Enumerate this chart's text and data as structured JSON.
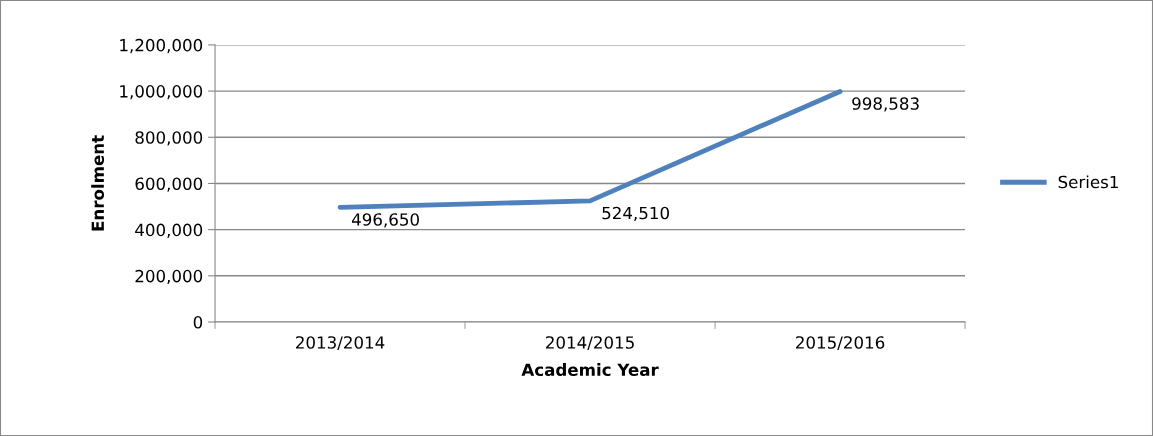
{
  "chart_data": {
    "type": "line",
    "xlabel": "Academic Year",
    "ylabel": "Enrolment",
    "categories": [
      "2013/2014",
      "2014/2015",
      "2015/2016"
    ],
    "series": [
      {
        "name": "Series1",
        "color": "#4f81bd",
        "values": [
          496650,
          524510,
          998583
        ],
        "value_labels": [
          "496,650",
          "524,510",
          "998,583"
        ]
      }
    ],
    "ylim": [
      0,
      1200000
    ],
    "yticks": [
      {
        "value": 0,
        "label": "0"
      },
      {
        "value": 200000,
        "label": "200,000"
      },
      {
        "value": 400000,
        "label": "400,000"
      },
      {
        "value": 600000,
        "label": "600,000"
      },
      {
        "value": 800000,
        "label": "800,000"
      },
      {
        "value": 1000000,
        "label": "1,000,000"
      },
      {
        "value": 1200000,
        "label": "1,200,000"
      }
    ],
    "grid": "y",
    "legend": "right",
    "marker": "none",
    "line_style": "solid"
  }
}
